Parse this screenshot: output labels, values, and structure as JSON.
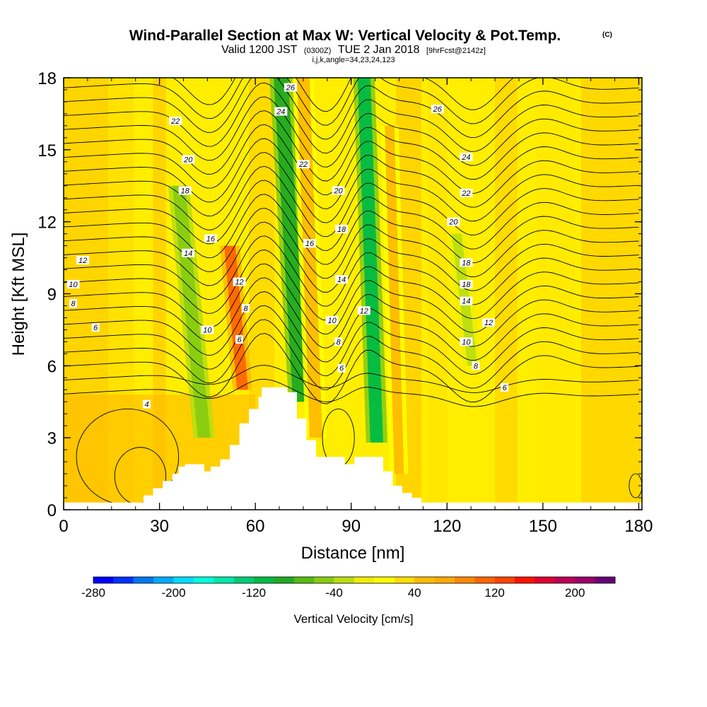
{
  "chart_data": {
    "type": "heatmap",
    "title": "Wind-Parallel Section at Max W: Vertical Velocity & Pot.Temp.",
    "title_mark": "(C)",
    "subtitle": {
      "valid": "Valid 1200 JST",
      "utc": "(0300Z)",
      "date": "TUE 2 Jan 2018",
      "forecast": "[9hrFcst@2142z]"
    },
    "section_params": "i,j,k,angle=34,23,24,123",
    "xlabel": "Distance [nm]",
    "ylabel": "Height [Kft MSL]",
    "xlim": [
      0,
      181
    ],
    "ylim": [
      0,
      18
    ],
    "x_ticks": [
      0,
      30,
      60,
      90,
      120,
      150,
      180
    ],
    "y_ticks": [
      0,
      3,
      6,
      9,
      12,
      15,
      18
    ],
    "terrain": {
      "x": [
        0,
        22,
        25,
        28,
        31,
        34,
        36,
        38,
        40,
        44,
        46,
        49,
        52,
        55,
        58,
        61,
        62,
        64,
        68,
        70,
        73,
        76,
        79,
        82,
        85,
        88,
        91,
        94,
        97,
        100,
        103,
        106,
        109,
        112,
        181
      ],
      "y": [
        0.3,
        0.3,
        0.6,
        0.9,
        1.2,
        1.5,
        1.8,
        1.9,
        1.9,
        1.6,
        1.8,
        2.1,
        2.7,
        3.6,
        4.2,
        4.7,
        5.1,
        5.1,
        5.1,
        4.9,
        3.8,
        2.9,
        2.2,
        2.2,
        2.2,
        1.9,
        2.2,
        2.2,
        2.2,
        1.6,
        1.0,
        0.7,
        0.5,
        0.3,
        0.3
      ]
    },
    "updrafts": [
      {
        "x_top": 36,
        "x_bottom": 44,
        "y_bottom": 3.0,
        "y_top": 13.5,
        "width": 4,
        "w": -60
      },
      {
        "x_top": 68,
        "x_bottom": 74,
        "y_bottom": 4.5,
        "y_top": 18,
        "width": 4.5,
        "w": -90
      },
      {
        "x_top": 94,
        "x_bottom": 98,
        "y_bottom": 2.8,
        "y_top": 18,
        "width": 4,
        "w": -110
      },
      {
        "x_top": 123,
        "x_bottom": 128,
        "y_bottom": 6.0,
        "y_top": 11.5,
        "width": 3,
        "w": -40
      }
    ],
    "downdrafts": [
      {
        "x_top": 52,
        "x_bottom": 56,
        "y_bottom": 5.0,
        "y_top": 11,
        "width": 3.5,
        "w": 100
      },
      {
        "x_top": 75,
        "x_bottom": 79,
        "y_bottom": 3.0,
        "y_top": 18,
        "width": 4,
        "w": 40
      },
      {
        "x_top": 102,
        "x_bottom": 105,
        "y_bottom": 1.5,
        "y_top": 16,
        "width": 3,
        "w": 40
      }
    ],
    "pot_temp_levels": [
      4,
      6,
      8,
      10,
      12,
      14,
      16,
      18,
      20,
      22,
      24,
      26
    ],
    "contour_labels": [
      {
        "text": "26",
        "x": 71,
        "y": 17.6
      },
      {
        "text": "26",
        "x": 117,
        "y": 16.7
      },
      {
        "text": "24",
        "x": 68,
        "y": 16.6
      },
      {
        "text": "24",
        "x": 126,
        "y": 14.7
      },
      {
        "text": "22",
        "x": 35,
        "y": 16.2
      },
      {
        "text": "22",
        "x": 75,
        "y": 14.4
      },
      {
        "text": "22",
        "x": 126,
        "y": 13.2
      },
      {
        "text": "20",
        "x": 39,
        "y": 14.6
      },
      {
        "text": "20",
        "x": 86,
        "y": 13.3
      },
      {
        "text": "20",
        "x": 122,
        "y": 12.0
      },
      {
        "text": "18",
        "x": 38,
        "y": 13.3
      },
      {
        "text": "18",
        "x": 87,
        "y": 11.7
      },
      {
        "text": "18",
        "x": 126,
        "y": 10.3
      },
      {
        "text": "18",
        "x": 126,
        "y": 9.4
      },
      {
        "text": "16",
        "x": 46,
        "y": 11.3
      },
      {
        "text": "16",
        "x": 77,
        "y": 11.1
      },
      {
        "text": "14",
        "x": 39,
        "y": 10.7
      },
      {
        "text": "14",
        "x": 87,
        "y": 9.6
      },
      {
        "text": "14",
        "x": 126,
        "y": 8.7
      },
      {
        "text": "12",
        "x": 6,
        "y": 10.4
      },
      {
        "text": "12",
        "x": 55,
        "y": 9.5
      },
      {
        "text": "12",
        "x": 94,
        "y": 8.3
      },
      {
        "text": "12",
        "x": 133,
        "y": 7.8
      },
      {
        "text": "10",
        "x": 3,
        "y": 9.4
      },
      {
        "text": "10",
        "x": 45,
        "y": 7.5
      },
      {
        "text": "10",
        "x": 84,
        "y": 7.9
      },
      {
        "text": "10",
        "x": 126,
        "y": 7.0
      },
      {
        "text": "8",
        "x": 3,
        "y": 8.6
      },
      {
        "text": "8",
        "x": 57,
        "y": 8.4
      },
      {
        "text": "8",
        "x": 86,
        "y": 7.0
      },
      {
        "text": "8",
        "x": 129,
        "y": 6.0
      },
      {
        "text": "6",
        "x": 10,
        "y": 7.6
      },
      {
        "text": "6",
        "x": 55,
        "y": 7.1
      },
      {
        "text": "6",
        "x": 87,
        "y": 5.9
      },
      {
        "text": "6",
        "x": 138,
        "y": 5.1
      },
      {
        "text": "4",
        "x": 26,
        "y": 4.4
      }
    ],
    "colorbar": {
      "label": "Vertical Velocity [cm/s]",
      "tick_labels": [
        "-280",
        "-200",
        "-120",
        "-40",
        "40",
        "120",
        "200"
      ],
      "colors": [
        "#0000ff",
        "#0033ff",
        "#0077ee",
        "#00aaff",
        "#00ddff",
        "#00ffdd",
        "#00e8aa",
        "#00cc77",
        "#00bb44",
        "#22aa22",
        "#55bb11",
        "#88cc11",
        "#bbdd11",
        "#eeee00",
        "#ffff00",
        "#ffdd00",
        "#ffbb00",
        "#ffaa00",
        "#ff8800",
        "#ff6600",
        "#ff4400",
        "#ff1100",
        "#dd0033",
        "#bb0055",
        "#990066",
        "#660077"
      ]
    }
  }
}
